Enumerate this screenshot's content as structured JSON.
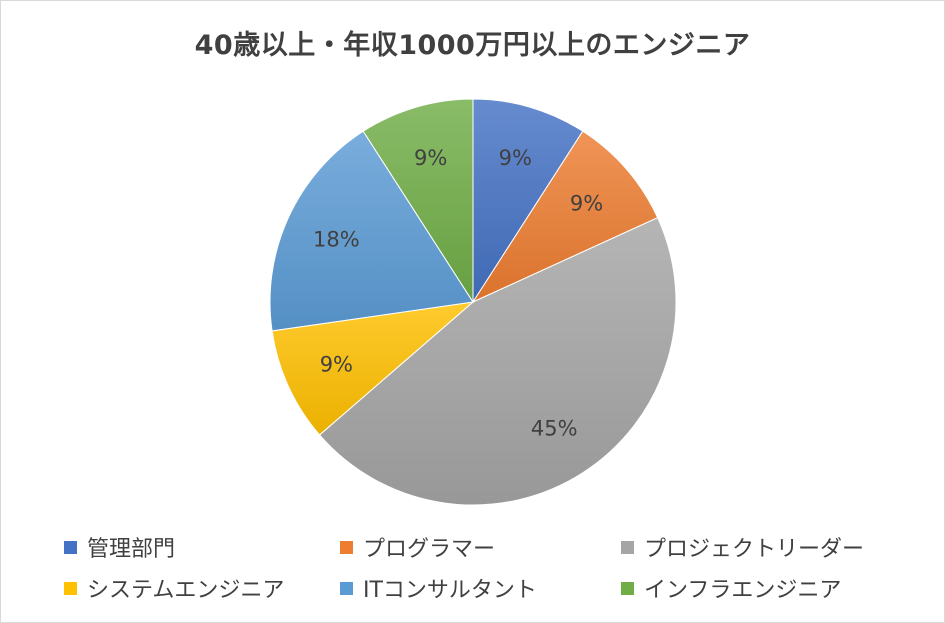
{
  "chart_data": {
    "type": "pie",
    "title": "40歳以上・年収1000万円以上のエンジニア",
    "slices": [
      {
        "label": "管理部門",
        "value": 9,
        "display": "9%",
        "color": "#4472c4"
      },
      {
        "label": "プログラマー",
        "value": 9,
        "display": "9%",
        "color": "#ed7d31"
      },
      {
        "label": "プロジェクトリーダー",
        "value": 45,
        "display": "45%",
        "color": "#a5a5a5"
      },
      {
        "label": "システムエンジニア",
        "value": 9,
        "display": "9%",
        "color": "#ffc000"
      },
      {
        "label": "ITコンサルタント",
        "value": 18,
        "display": "18%",
        "color": "#5b9bd5"
      },
      {
        "label": "インフラエンジニア",
        "value": 9,
        "display": "9%",
        "color": "#70ad47"
      }
    ],
    "legend_position": "bottom"
  }
}
